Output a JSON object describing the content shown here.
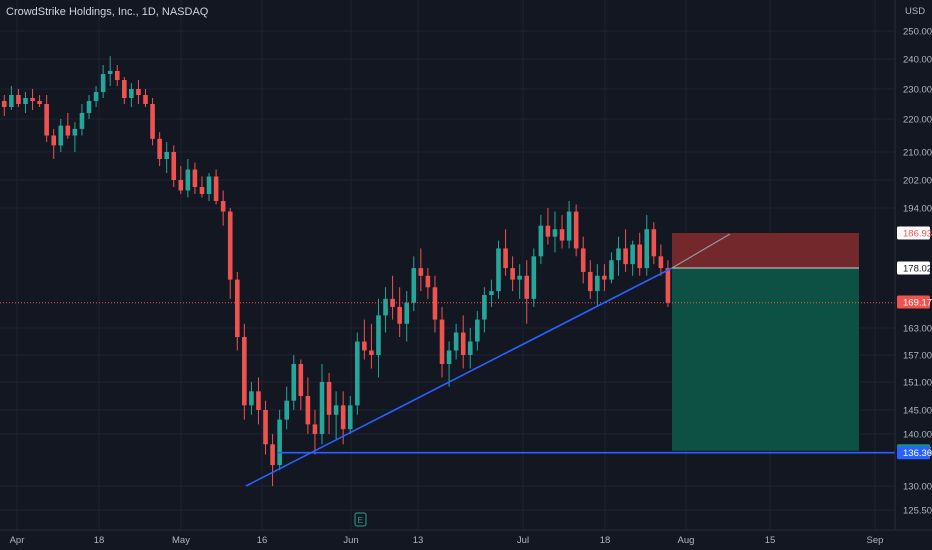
{
  "header": {
    "title": "CrowdStrike Holdings, Inc., 1D, NASDAQ",
    "currency": "USD"
  },
  "colors": {
    "background": "#131722",
    "grid": "#1f2330",
    "up": "#26a69a",
    "down": "#ef5350",
    "trendline": "#2962ff",
    "stop_zone": "#7e2a2c",
    "target_zone": "#0d5448"
  },
  "chart_data": {
    "type": "candlestick",
    "title": "CrowdStrike Holdings, Inc., 1D, NASDAQ",
    "y_axis_ticks": [
      "250.00",
      "240.00",
      "230.00",
      "220.00",
      "210.00",
      "202.00",
      "194.00",
      "163.00",
      "157.00",
      "151.00",
      "145.00",
      "140.00",
      "130.00",
      "125.50"
    ],
    "x_axis_ticks": [
      "Apr",
      "18",
      "May",
      "16",
      "Jun",
      "13",
      "Jul",
      "18",
      "Aug",
      "15",
      "Sep"
    ],
    "price_badges": [
      {
        "label": "186.93",
        "kind": "stop"
      },
      {
        "label": "178.02",
        "kind": "entry"
      },
      {
        "label": "169.17",
        "kind": "last"
      },
      {
        "label": "136.75",
        "kind": "target"
      },
      {
        "label": "136.36",
        "kind": "support"
      }
    ],
    "bar_interval": "1D",
    "candles_ohlc": [
      [
        226,
        228,
        221,
        224
      ],
      [
        224,
        231,
        223,
        228
      ],
      [
        228,
        230,
        224,
        225
      ],
      [
        225,
        229,
        222,
        227
      ],
      [
        227,
        230,
        223,
        226
      ],
      [
        226,
        228,
        224,
        225
      ],
      [
        225,
        228,
        213,
        215
      ],
      [
        215,
        217,
        208,
        212
      ],
      [
        212,
        220,
        210,
        218
      ],
      [
        218,
        222,
        214,
        215
      ],
      [
        215,
        219,
        210,
        217
      ],
      [
        217,
        225,
        215,
        222
      ],
      [
        222,
        228,
        220,
        226
      ],
      [
        226,
        231,
        224,
        229
      ],
      [
        229,
        238,
        227,
        235
      ],
      [
        235,
        241,
        231,
        236
      ],
      [
        236,
        238,
        231,
        233
      ],
      [
        233,
        234,
        225,
        227
      ],
      [
        227,
        232,
        224,
        230
      ],
      [
        230,
        233,
        225,
        228
      ],
      [
        228,
        230,
        224,
        225
      ],
      [
        225,
        227,
        212,
        214
      ],
      [
        214,
        216,
        206,
        208
      ],
      [
        208,
        213,
        204,
        210
      ],
      [
        210,
        212,
        200,
        202
      ],
      [
        202,
        206,
        198,
        199
      ],
      [
        199,
        208,
        197,
        205
      ],
      [
        205,
        207,
        198,
        200
      ],
      [
        200,
        203,
        197,
        198
      ],
      [
        198,
        204,
        196,
        203
      ],
      [
        203,
        205,
        195,
        196
      ],
      [
        196,
        199,
        189,
        193
      ],
      [
        193,
        194,
        170,
        175
      ],
      [
        175,
        177,
        158,
        161
      ],
      [
        161,
        164,
        143,
        146
      ],
      [
        146,
        151,
        144,
        149
      ],
      [
        149,
        152,
        142,
        145
      ],
      [
        145,
        147,
        136,
        138
      ],
      [
        138,
        140,
        130,
        134
      ],
      [
        134,
        145,
        133,
        143
      ],
      [
        143,
        150,
        141,
        147
      ],
      [
        147,
        157,
        145,
        155
      ],
      [
        155,
        156,
        145,
        148
      ],
      [
        148,
        152,
        140,
        142
      ],
      [
        142,
        145,
        136,
        140
      ],
      [
        140,
        155,
        138,
        151
      ],
      [
        151,
        153,
        140,
        144
      ],
      [
        144,
        149,
        139,
        146
      ],
      [
        146,
        149,
        138,
        141
      ],
      [
        141,
        148,
        140,
        146
      ],
      [
        146,
        162,
        144,
        160
      ],
      [
        160,
        165,
        156,
        158
      ],
      [
        158,
        164,
        154,
        157
      ],
      [
        157,
        170,
        152,
        166
      ],
      [
        166,
        173,
        162,
        170
      ],
      [
        170,
        176,
        165,
        168
      ],
      [
        168,
        173,
        161,
        164
      ],
      [
        164,
        172,
        160,
        169
      ],
      [
        169,
        181,
        167,
        178
      ],
      [
        178,
        183,
        172,
        176
      ],
      [
        176,
        178,
        170,
        173
      ],
      [
        173,
        176,
        162,
        165
      ],
      [
        165,
        168,
        152,
        155
      ],
      [
        155,
        160,
        150,
        158
      ],
      [
        158,
        164,
        156,
        162
      ],
      [
        162,
        166,
        154,
        157
      ],
      [
        157,
        163,
        154,
        160
      ],
      [
        160,
        167,
        158,
        165
      ],
      [
        165,
        173,
        162,
        171
      ],
      [
        171,
        175,
        168,
        172
      ],
      [
        172,
        185,
        170,
        183
      ],
      [
        183,
        188,
        176,
        178
      ],
      [
        178,
        181,
        172,
        175
      ],
      [
        175,
        179,
        170,
        176
      ],
      [
        176,
        180,
        164,
        170
      ],
      [
        170,
        183,
        168,
        181
      ],
      [
        181,
        192,
        179,
        189
      ],
      [
        189,
        194,
        184,
        186
      ],
      [
        186,
        193,
        182,
        188
      ],
      [
        188,
        192,
        183,
        185
      ],
      [
        185,
        196,
        183,
        193
      ],
      [
        193,
        195,
        181,
        183
      ],
      [
        183,
        186,
        174,
        177
      ],
      [
        177,
        180,
        170,
        172
      ],
      [
        172,
        179,
        168,
        176
      ],
      [
        176,
        179,
        172,
        175
      ],
      [
        175,
        182,
        174,
        180
      ],
      [
        180,
        186,
        176,
        183
      ],
      [
        183,
        188,
        177,
        179
      ],
      [
        179,
        185,
        176,
        184
      ],
      [
        184,
        187,
        176,
        178
      ],
      [
        178,
        192,
        176,
        188
      ],
      [
        188,
        190,
        179,
        181
      ],
      [
        181,
        184,
        176,
        178
      ],
      [
        178,
        180,
        168,
        169
      ]
    ]
  }
}
